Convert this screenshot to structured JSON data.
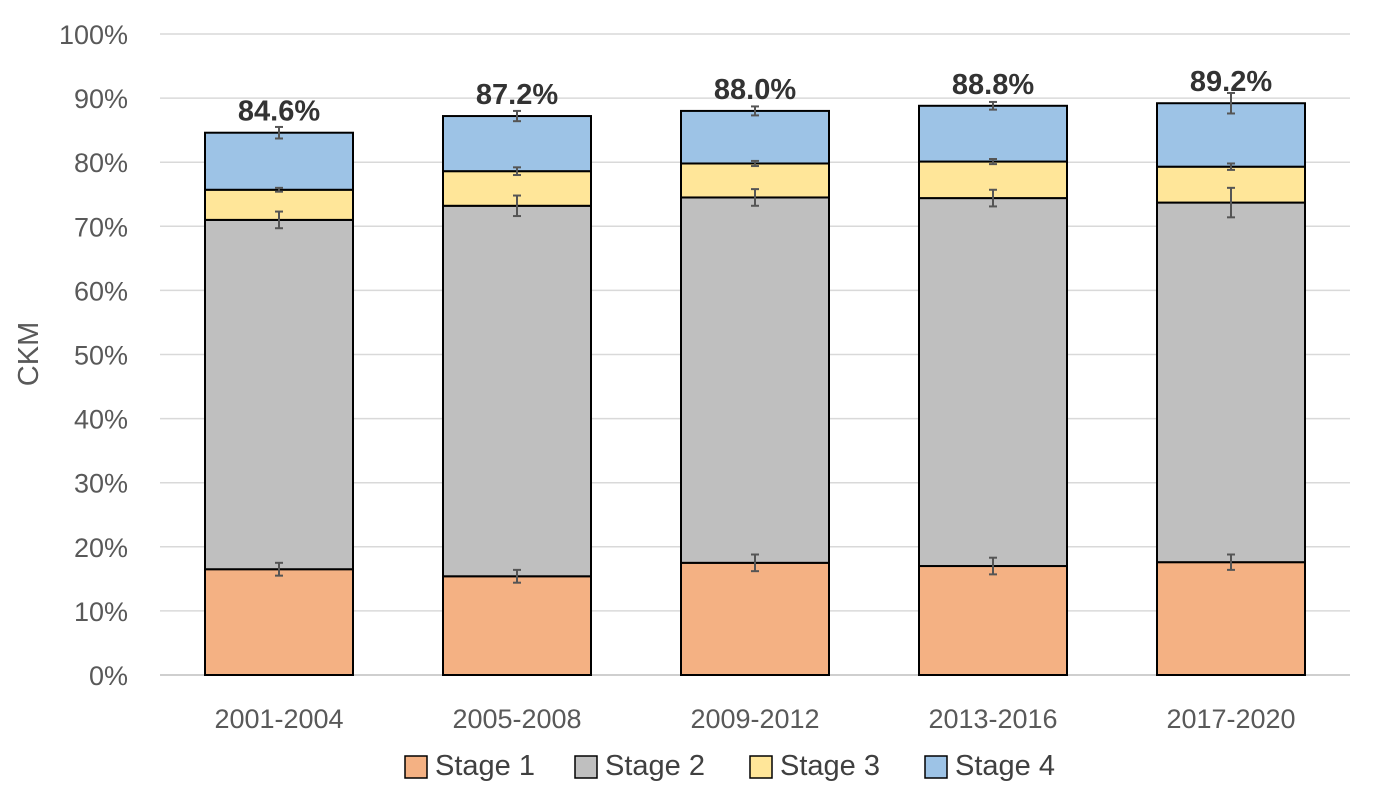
{
  "chart_data": {
    "type": "bar",
    "stacked": true,
    "title": "",
    "xlabel": "",
    "ylabel": "CKM",
    "ylim": [
      0,
      100
    ],
    "yticks": [
      "0%",
      "10%",
      "20%",
      "30%",
      "40%",
      "50%",
      "60%",
      "70%",
      "80%",
      "90%",
      "100%"
    ],
    "grid": true,
    "legend_position": "bottom",
    "categories": [
      "2001-2004",
      "2005-2008",
      "2009-2012",
      "2013-2016",
      "2017-2020"
    ],
    "series": [
      {
        "name": "Stage 1",
        "color": "#F4B183",
        "values": [
          16.5,
          15.4,
          17.5,
          17.0,
          17.6
        ],
        "error": [
          1.0,
          1.0,
          1.3,
          1.3,
          1.2
        ]
      },
      {
        "name": "Stage 2",
        "color": "#BFBFBF",
        "values": [
          54.5,
          57.8,
          57.0,
          57.4,
          56.1
        ],
        "error": [
          1.3,
          1.6,
          1.3,
          1.3,
          2.3
        ]
      },
      {
        "name": "Stage 3",
        "color": "#FFE699",
        "values": [
          4.7,
          5.4,
          5.3,
          5.7,
          5.6
        ],
        "error": [
          0.3,
          0.6,
          0.4,
          0.4,
          0.5
        ]
      },
      {
        "name": "Stage 4",
        "color": "#9DC3E6",
        "values": [
          8.9,
          8.6,
          8.2,
          8.7,
          9.9
        ],
        "error": [
          0.9,
          0.8,
          0.7,
          0.6,
          1.6
        ]
      }
    ],
    "totals": [
      "84.6%",
      "87.2%",
      "88.0%",
      "88.8%",
      "89.2%"
    ]
  }
}
